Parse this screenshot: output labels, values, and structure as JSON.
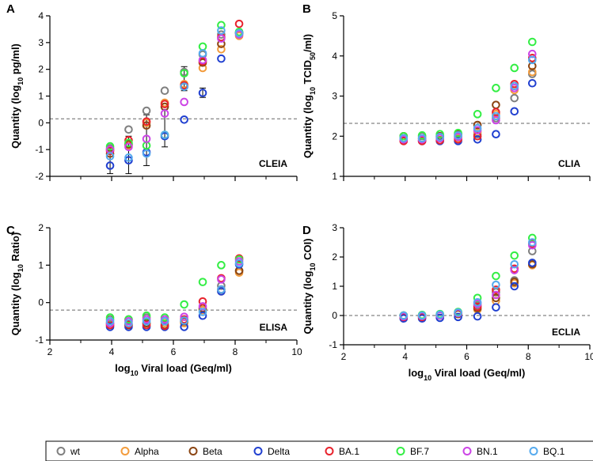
{
  "colors": {
    "wt": "#7f7f7f",
    "Alpha": "#f39c3c",
    "Beta": "#8b4513",
    "Delta": "#2140d0",
    "BA.1": "#e8222c",
    "BF.7": "#33ee44",
    "BN.1": "#cc44e6",
    "BQ.1": "#55aaee"
  },
  "legend": {
    "entries": [
      "wt",
      "Alpha",
      "Beta",
      "Delta",
      "BA.1",
      "BF.7",
      "BN.1",
      "BQ.1"
    ]
  },
  "chart_data": [
    {
      "id": "A",
      "letter": "A",
      "type": "scatter",
      "assay": "CLEIA",
      "ylabel_pre": "Quantity (log",
      "ylabel_sub": "10",
      "ylabel_post": " pg/ml)",
      "xlabel_pre": "log",
      "xlabel_sub": "10",
      "xlabel_post": " Viral load (Geq/ml)",
      "xlim": [
        2,
        10
      ],
      "xticks": [],
      "ylim": [
        -2,
        4
      ],
      "yticks": [
        "-2",
        "-1",
        "0",
        "1",
        "2",
        "3",
        "4"
      ],
      "threshold": 0.15,
      "x": [
        3.95,
        4.55,
        5.13,
        5.72,
        6.35,
        6.95,
        7.55,
        8.13
      ],
      "series": [
        {
          "name": "wt",
          "values": [
            -0.95,
            -0.25,
            0.45,
            1.2,
            1.9,
            2.55,
            3.3,
            3.35
          ]
        },
        {
          "name": "Alpha",
          "values": [
            -1.0,
            -0.85,
            0.0,
            0.75,
            1.45,
            2.05,
            2.75,
            3.25
          ]
        },
        {
          "name": "Beta",
          "values": [
            -1.15,
            -0.8,
            -0.1,
            0.6,
            1.35,
            2.25,
            2.95,
            3.35
          ]
        },
        {
          "name": "Delta",
          "values": [
            -1.6,
            -1.4,
            -1.1,
            -0.5,
            0.12,
            1.12,
            2.4,
            3.38
          ]
        },
        {
          "name": "BA.1",
          "values": [
            -1.05,
            -0.65,
            0.05,
            0.7,
            1.4,
            2.3,
            3.2,
            3.7
          ]
        },
        {
          "name": "BF.7",
          "values": [
            -0.88,
            -0.75,
            -0.85,
            -0.45,
            1.85,
            2.85,
            3.65,
            3.4
          ]
        },
        {
          "name": "BN.1",
          "values": [
            -1.0,
            -0.9,
            -0.6,
            0.35,
            0.78,
            2.35,
            3.15,
            3.3
          ]
        },
        {
          "name": "BQ.1",
          "values": [
            -1.25,
            -1.3,
            -1.15,
            -0.45,
            1.35,
            2.6,
            3.45,
            3.35
          ]
        }
      ],
      "error_bars": [
        {
          "x": 3.95,
          "low": -1.9,
          "high": -0.9
        },
        {
          "x": 4.55,
          "low": -1.9,
          "high": -0.5
        },
        {
          "x": 5.13,
          "low": -1.6,
          "high": 0.3
        },
        {
          "x": 5.72,
          "low": -0.9,
          "high": 0.5
        },
        {
          "x": 6.35,
          "low": 1.2,
          "high": 2.1
        },
        {
          "x": 6.95,
          "low": 0.95,
          "high": 1.3
        }
      ]
    },
    {
      "id": "B",
      "letter": "B",
      "type": "scatter",
      "assay": "CLIA",
      "ylabel_pre": "Quantity (log",
      "ylabel_sub": "10",
      "ylabel_post": " TCID",
      "ylabel_sub2": "50",
      "ylabel_post2": "/ml)",
      "xlim": [
        2,
        10
      ],
      "xticks": [],
      "ylim": [
        1,
        5
      ],
      "yticks": [
        "1",
        "2",
        "3",
        "4",
        "5"
      ],
      "threshold": 2.32,
      "x": [
        3.95,
        4.55,
        5.13,
        5.72,
        6.35,
        6.95,
        7.55,
        8.13
      ],
      "series": [
        {
          "name": "wt",
          "values": [
            2.0,
            2.0,
            2.0,
            2.0,
            2.05,
            2.45,
            2.95,
            3.55
          ]
        },
        {
          "name": "Alpha",
          "values": [
            1.95,
            1.9,
            1.95,
            1.95,
            2.1,
            2.55,
            3.15,
            3.6
          ]
        },
        {
          "name": "Beta",
          "values": [
            2.0,
            1.95,
            2.0,
            2.05,
            2.28,
            2.78,
            3.25,
            3.75
          ]
        },
        {
          "name": "Delta",
          "values": [
            1.9,
            1.88,
            1.88,
            1.88,
            1.92,
            2.05,
            2.62,
            3.32
          ]
        },
        {
          "name": "BA.1",
          "values": [
            1.88,
            1.88,
            1.9,
            1.92,
            2.0,
            2.6,
            3.3,
            3.95
          ]
        },
        {
          "name": "BF.7",
          "values": [
            2.0,
            2.02,
            2.05,
            2.08,
            2.55,
            3.2,
            3.7,
            4.35
          ]
        },
        {
          "name": "BN.1",
          "values": [
            1.92,
            1.92,
            1.95,
            1.98,
            2.15,
            2.4,
            3.2,
            4.05
          ]
        },
        {
          "name": "BQ.1",
          "values": [
            1.95,
            1.95,
            1.98,
            2.02,
            2.2,
            2.5,
            3.25,
            3.9
          ]
        }
      ]
    },
    {
      "id": "C",
      "letter": "C",
      "type": "scatter",
      "assay": "ELISA",
      "ylabel_pre": "Quantity (log",
      "ylabel_sub": "10",
      "ylabel_post": " Ratio)",
      "xlim": [
        2,
        10
      ],
      "xticks": [
        "2",
        "4",
        "6",
        "8",
        "10"
      ],
      "ylim": [
        -1,
        2
      ],
      "yticks": [
        "-1",
        "0",
        "1",
        "2"
      ],
      "threshold": -0.2,
      "x": [
        3.95,
        4.55,
        5.13,
        5.72,
        6.35,
        6.95,
        7.55,
        8.13
      ],
      "series": [
        {
          "name": "wt",
          "values": [
            -0.45,
            -0.45,
            -0.4,
            -0.5,
            -0.5,
            -0.2,
            0.45,
            0.85
          ]
        },
        {
          "name": "Alpha",
          "values": [
            -0.6,
            -0.6,
            -0.55,
            -0.55,
            -0.55,
            -0.2,
            0.3,
            0.8
          ]
        },
        {
          "name": "Beta",
          "values": [
            -0.55,
            -0.6,
            -0.55,
            -0.6,
            -0.5,
            -0.15,
            0.35,
            0.85
          ]
        },
        {
          "name": "Delta",
          "values": [
            -0.65,
            -0.65,
            -0.65,
            -0.65,
            -0.65,
            -0.35,
            0.3,
            1.02
          ]
        },
        {
          "name": "BA.1",
          "values": [
            -0.6,
            -0.58,
            -0.6,
            -0.62,
            -0.45,
            0.03,
            0.65,
            1.18
          ]
        },
        {
          "name": "BF.7",
          "values": [
            -0.4,
            -0.45,
            -0.35,
            -0.4,
            -0.05,
            0.55,
            1.0,
            1.15
          ]
        },
        {
          "name": "BN.1",
          "values": [
            -0.55,
            -0.5,
            -0.45,
            -0.45,
            -0.38,
            -0.1,
            0.62,
            1.1
          ]
        },
        {
          "name": "BQ.1",
          "values": [
            -0.5,
            -0.55,
            -0.5,
            -0.5,
            -0.48,
            -0.25,
            0.35,
            1.05
          ]
        }
      ]
    },
    {
      "id": "D",
      "letter": "D",
      "type": "scatter",
      "assay": "ECLIA",
      "ylabel_pre": "Quantity (log",
      "ylabel_sub": "10",
      "ylabel_post": " COI)",
      "xlim": [
        2,
        10
      ],
      "xticks": [
        "2",
        "4",
        "6",
        "8",
        "10"
      ],
      "ylim": [
        -1,
        3
      ],
      "yticks": [
        "-1",
        "0",
        "1",
        "2",
        "3"
      ],
      "threshold": 0.0,
      "x": [
        3.95,
        4.55,
        5.13,
        5.72,
        6.35,
        6.95,
        7.55,
        8.13
      ],
      "series": [
        {
          "name": "wt",
          "values": [
            0.0,
            0.0,
            0.0,
            0.05,
            0.35,
            0.8,
            1.2,
            2.2
          ]
        },
        {
          "name": "Alpha",
          "values": [
            -0.05,
            -0.05,
            0.0,
            0.05,
            0.2,
            0.5,
            1.1,
            1.72
          ]
        },
        {
          "name": "Beta",
          "values": [
            0.0,
            0.0,
            0.02,
            0.05,
            0.25,
            0.6,
            1.15,
            1.75
          ]
        },
        {
          "name": "Delta",
          "values": [
            -0.1,
            -0.1,
            -0.08,
            -0.05,
            -0.03,
            0.28,
            1.0,
            1.8
          ]
        },
        {
          "name": "BA.1",
          "values": [
            -0.05,
            -0.05,
            0.0,
            0.08,
            0.3,
            0.88,
            1.6,
            2.45
          ]
        },
        {
          "name": "BF.7",
          "values": [
            0.0,
            0.02,
            0.05,
            0.12,
            0.6,
            1.35,
            2.05,
            2.65
          ]
        },
        {
          "name": "BN.1",
          "values": [
            -0.03,
            -0.02,
            0.0,
            0.08,
            0.4,
            0.7,
            1.55,
            2.4
          ]
        },
        {
          "name": "BQ.1",
          "values": [
            0.0,
            0.0,
            0.03,
            0.1,
            0.45,
            1.05,
            1.75,
            2.5
          ]
        }
      ]
    }
  ]
}
